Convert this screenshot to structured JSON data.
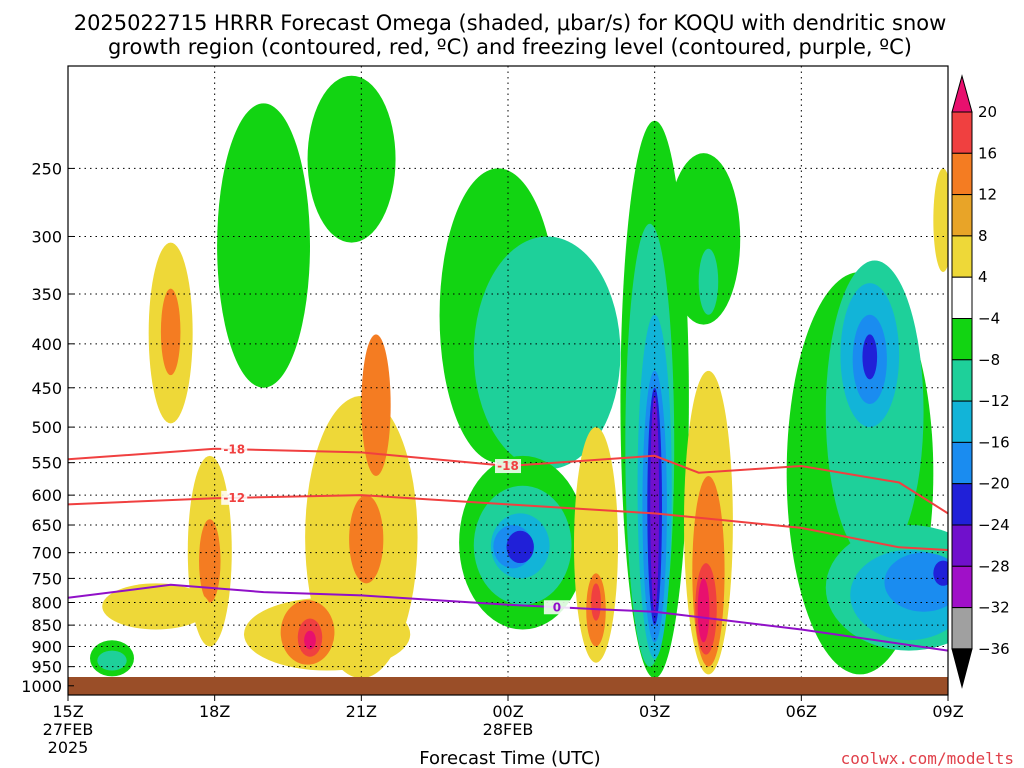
{
  "chart_data": {
    "type": "heatmap",
    "title_line1": "2025022715 HRRR Forecast Omega (shaded, μbar/s) for KOQU with dendritic snow",
    "title_line2": "growth region (contoured, red, ºC) and freezing level (contoured, purple, ºC)",
    "xlabel": "Forecast Time (UTC)",
    "credit": "coolwx.com/modelts",
    "x_ticks": [
      {
        "hour": 0,
        "label": "15Z",
        "sub1": "27FEB",
        "sub2": "2025"
      },
      {
        "hour": 3,
        "label": "18Z",
        "sub1": "",
        "sub2": ""
      },
      {
        "hour": 6,
        "label": "21Z",
        "sub1": "",
        "sub2": ""
      },
      {
        "hour": 9,
        "label": "00Z",
        "sub1": "28FEB",
        "sub2": ""
      },
      {
        "hour": 12,
        "label": "03Z",
        "sub1": "",
        "sub2": ""
      },
      {
        "hour": 15,
        "label": "06Z",
        "sub1": "",
        "sub2": ""
      },
      {
        "hour": 18,
        "label": "09Z",
        "sub1": "",
        "sub2": ""
      }
    ],
    "xlim": [
      0,
      18
    ],
    "y_ticks": [
      250,
      300,
      350,
      400,
      450,
      500,
      550,
      600,
      650,
      700,
      750,
      800,
      850,
      900,
      950,
      1000
    ],
    "ylim_hpa": [
      190,
      1025
    ],
    "colorbar": {
      "labels": [
        "20",
        "16",
        "12",
        "8",
        "4",
        "−4",
        "−8",
        "−12",
        "−16",
        "−20",
        "−24",
        "−28",
        "−32",
        "−36"
      ],
      "colors": [
        "#e8106e",
        "#f04040",
        "#f47c22",
        "#e8a428",
        "#eed838",
        "#ffffff",
        "#12d412",
        "#1ed09a",
        "#12b4d8",
        "#1a8cf0",
        "#2020d8",
        "#7010cc",
        "#a010c8",
        "#a0a0a0",
        "#000000"
      ]
    },
    "omega_blobs": [
      {
        "level": "-4",
        "x": 0.9,
        "p": 930,
        "rx": 0.45,
        "rp": 45
      },
      {
        "level": "-8",
        "x": 0.9,
        "p": 935,
        "rx": 0.3,
        "rp": 25
      },
      {
        "level": "4",
        "x": 2.1,
        "p": 400,
        "rx": 0.45,
        "rp": 95
      },
      {
        "level": "8",
        "x": 2.1,
        "p": 390,
        "rx": 0.2,
        "rp": 45
      },
      {
        "level": "4",
        "x": 2.9,
        "p": 720,
        "rx": 0.45,
        "rp": 180
      },
      {
        "level": "8",
        "x": 2.9,
        "p": 720,
        "rx": 0.22,
        "rp": 80
      },
      {
        "level": "4",
        "x": 1.8,
        "p": 810,
        "rx": 1.1,
        "rp": 50
      },
      {
        "level": "-4",
        "x": 4.0,
        "p": 330,
        "rx": 0.95,
        "rp": 120
      },
      {
        "level": "-4",
        "x": 5.8,
        "p": 250,
        "rx": 0.9,
        "rp": 55
      },
      {
        "level": "4",
        "x": 6.0,
        "p": 720,
        "rx": 1.15,
        "rp": 260
      },
      {
        "level": "4",
        "x": 5.3,
        "p": 875,
        "rx": 1.7,
        "rp": 85
      },
      {
        "level": "8",
        "x": 4.9,
        "p": 870,
        "rx": 0.55,
        "rp": 75
      },
      {
        "level": "12",
        "x": 4.95,
        "p": 880,
        "rx": 0.25,
        "rp": 45
      },
      {
        "level": "16",
        "x": 4.95,
        "p": 885,
        "rx": 0.12,
        "rp": 22
      },
      {
        "level": "8",
        "x": 6.3,
        "p": 480,
        "rx": 0.3,
        "rp": 90
      },
      {
        "level": "8",
        "x": 6.1,
        "p": 680,
        "rx": 0.35,
        "rp": 80
      },
      {
        "level": "-4",
        "x": 8.8,
        "p": 400,
        "rx": 1.2,
        "rp": 150
      },
      {
        "level": "-8",
        "x": 9.8,
        "p": 430,
        "rx": 1.5,
        "rp": 130
      },
      {
        "level": "-4",
        "x": 9.3,
        "p": 700,
        "rx": 1.3,
        "rp": 160
      },
      {
        "level": "-8",
        "x": 9.3,
        "p": 695,
        "rx": 1.0,
        "rp": 110
      },
      {
        "level": "-12",
        "x": 9.25,
        "p": 690,
        "rx": 0.6,
        "rp": 60
      },
      {
        "level": "-16",
        "x": 9.1,
        "p": 690,
        "rx": 0.4,
        "rp": 40
      },
      {
        "level": "-20",
        "x": 9.25,
        "p": 690,
        "rx": 0.28,
        "rp": 30
      },
      {
        "level": "4",
        "x": 10.8,
        "p": 720,
        "rx": 0.45,
        "rp": 220
      },
      {
        "level": "8",
        "x": 10.8,
        "p": 820,
        "rx": 0.2,
        "rp": 80
      },
      {
        "level": "12",
        "x": 10.8,
        "p": 800,
        "rx": 0.1,
        "rp": 40
      },
      {
        "level": "-4",
        "x": 12.0,
        "p": 600,
        "rx": 0.7,
        "rp": 380
      },
      {
        "level": "-8",
        "x": 11.9,
        "p": 620,
        "rx": 0.5,
        "rp": 330
      },
      {
        "level": "-12",
        "x": 12.0,
        "p": 650,
        "rx": 0.35,
        "rp": 280
      },
      {
        "level": "-16",
        "x": 12.0,
        "p": 660,
        "rx": 0.25,
        "rp": 230
      },
      {
        "level": "-20",
        "x": 12.0,
        "p": 650,
        "rx": 0.15,
        "rp": 200
      },
      {
        "level": "-24",
        "x": 12.0,
        "p": 640,
        "rx": 0.09,
        "rp": 180
      },
      {
        "level": "-4",
        "x": 13.0,
        "p": 310,
        "rx": 0.75,
        "rp": 70
      },
      {
        "level": "-8",
        "x": 13.1,
        "p": 340,
        "rx": 0.2,
        "rp": 30
      },
      {
        "level": "4",
        "x": 13.1,
        "p": 700,
        "rx": 0.5,
        "rp": 270
      },
      {
        "level": "8",
        "x": 13.1,
        "p": 760,
        "rx": 0.33,
        "rp": 190
      },
      {
        "level": "12",
        "x": 13.05,
        "p": 820,
        "rx": 0.22,
        "rp": 100
      },
      {
        "level": "16",
        "x": 13.0,
        "p": 820,
        "rx": 0.12,
        "rp": 70
      },
      {
        "level": "-4",
        "x": 16.2,
        "p": 650,
        "rx": 1.5,
        "rp": 320
      },
      {
        "level": "-8",
        "x": 16.5,
        "p": 520,
        "rx": 1.0,
        "rp": 200
      },
      {
        "level": "-12",
        "x": 16.4,
        "p": 420,
        "rx": 0.6,
        "rp": 80
      },
      {
        "level": "-16",
        "x": 16.4,
        "p": 420,
        "rx": 0.35,
        "rp": 50
      },
      {
        "level": "-20",
        "x": 16.4,
        "p": 415,
        "rx": 0.15,
        "rp": 25
      },
      {
        "level": "-8",
        "x": 17.2,
        "p": 780,
        "rx": 1.7,
        "rp": 130
      },
      {
        "level": "-12",
        "x": 17.2,
        "p": 790,
        "rx": 1.2,
        "rp": 95
      },
      {
        "level": "-16",
        "x": 17.5,
        "p": 760,
        "rx": 0.8,
        "rp": 60
      },
      {
        "level": "-20",
        "x": 17.9,
        "p": 740,
        "rx": 0.2,
        "rp": 25
      },
      {
        "level": "4",
        "x": 17.9,
        "p": 290,
        "rx": 0.2,
        "rp": 40
      }
    ],
    "dgz_contours": [
      {
        "label": "-18",
        "points": [
          [
            0,
            545
          ],
          [
            3,
            530
          ],
          [
            6,
            535
          ],
          [
            9,
            555
          ],
          [
            12,
            540
          ],
          [
            12.9,
            565
          ],
          [
            15,
            555
          ],
          [
            17,
            580
          ],
          [
            18,
            630
          ]
        ]
      },
      {
        "label": "-12",
        "points": [
          [
            0,
            615
          ],
          [
            3,
            605
          ],
          [
            6,
            600
          ],
          [
            9,
            615
          ],
          [
            12,
            630
          ],
          [
            15,
            655
          ],
          [
            17,
            690
          ],
          [
            18,
            695
          ]
        ]
      }
    ],
    "freezing_level": {
      "label": "0",
      "points": [
        [
          0,
          790
        ],
        [
          2.1,
          763
        ],
        [
          4,
          778
        ],
        [
          6,
          785
        ],
        [
          9,
          805
        ],
        [
          10.9,
          815
        ],
        [
          12,
          820
        ],
        [
          15,
          860
        ],
        [
          18,
          910
        ]
      ]
    }
  }
}
